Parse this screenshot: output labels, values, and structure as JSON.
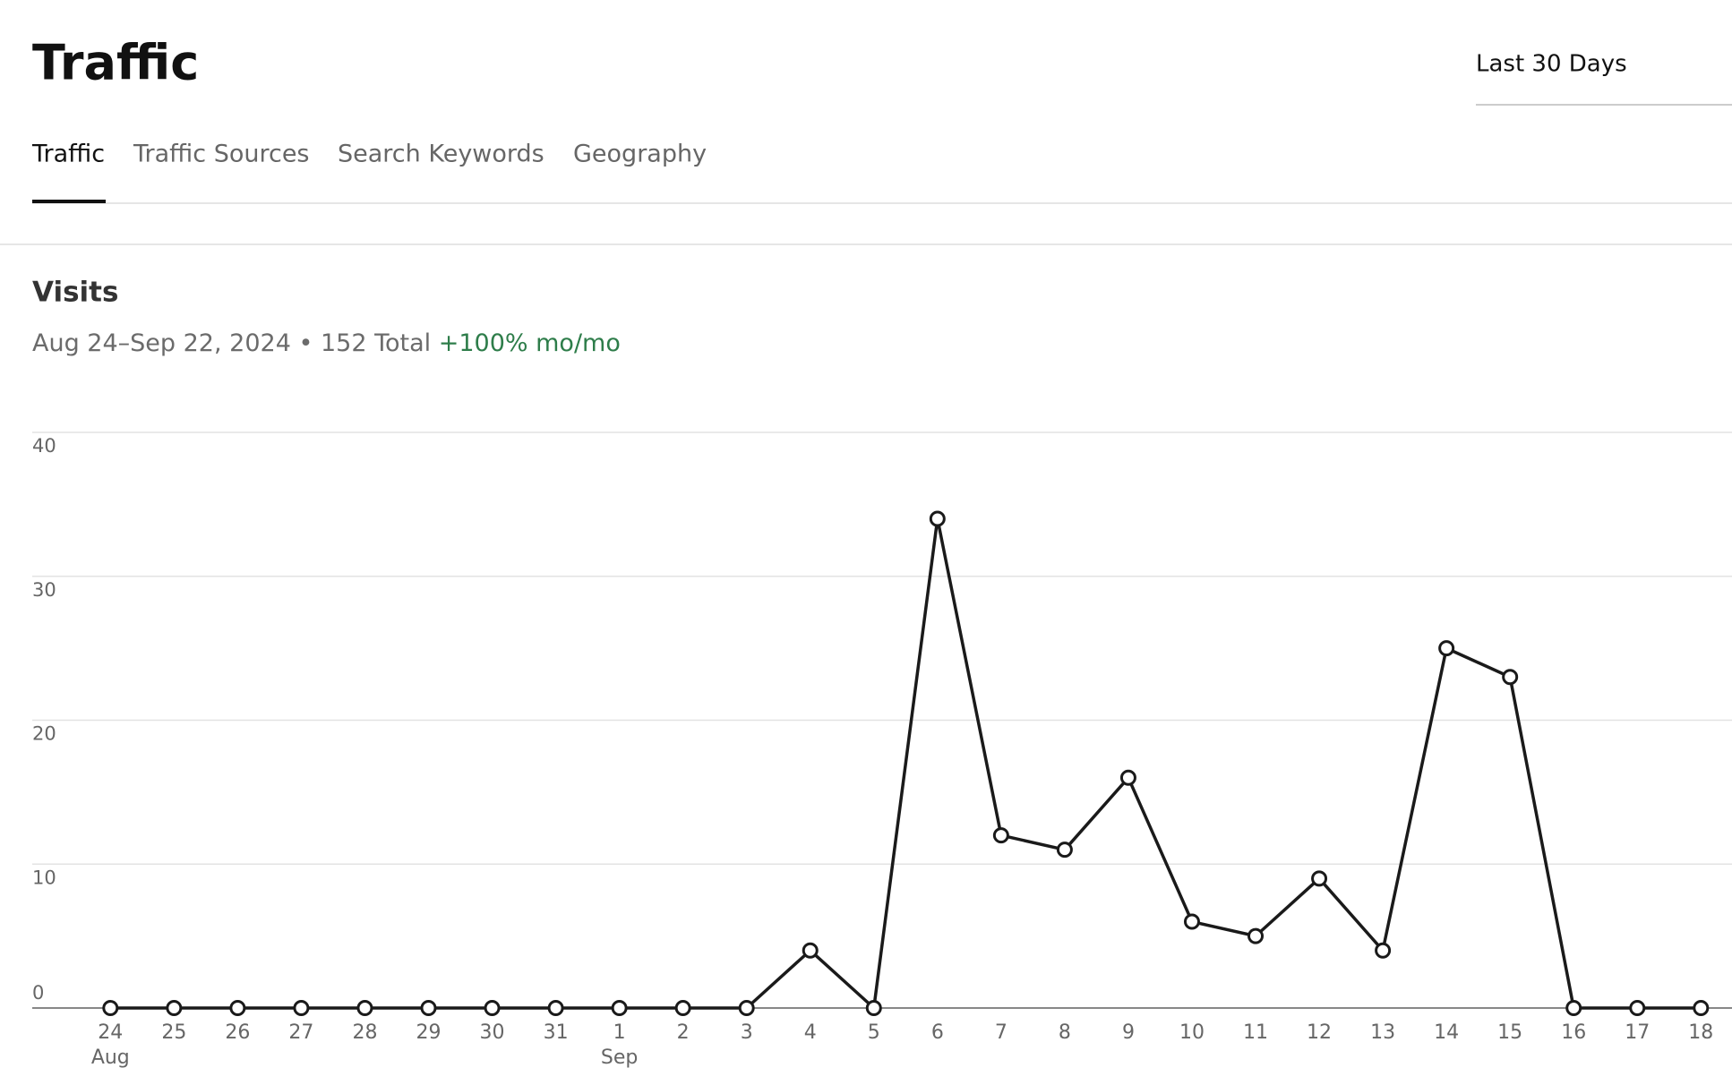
{
  "header": {
    "title": "Traffic",
    "range_selector": "Last 30 Days"
  },
  "tabs": [
    "Traffic",
    "Traffic Sources",
    "Search Keywords",
    "Geography"
  ],
  "chart_data": {
    "type": "line",
    "title": "Visits",
    "subtitle": "Aug 24–Sep 22, 2024 • 152 Total",
    "change": "+100% mo/mo",
    "categories": [
      "24",
      "25",
      "26",
      "27",
      "28",
      "29",
      "30",
      "31",
      "1",
      "2",
      "3",
      "4",
      "5",
      "6",
      "7",
      "8",
      "9",
      "10",
      "11",
      "12",
      "13",
      "14",
      "15",
      "16",
      "17",
      "18"
    ],
    "category_months": [
      "Aug",
      null,
      null,
      null,
      null,
      null,
      null,
      null,
      "Sep",
      null,
      null,
      null,
      null,
      null,
      null,
      null,
      null,
      null,
      null,
      null,
      null,
      null,
      null,
      null,
      null,
      null
    ],
    "series": [
      {
        "name": "Visits",
        "color": "#1a1a1a",
        "values": [
          0,
          0,
          0,
          0,
          0,
          0,
          0,
          0,
          0,
          0,
          0,
          4,
          0,
          34,
          12,
          11,
          16,
          6,
          5,
          9,
          4,
          25,
          23,
          0,
          0,
          0
        ]
      }
    ],
    "ylim": [
      0,
      40
    ],
    "yticks": [
      0,
      10,
      20,
      30,
      40
    ],
    "grid": true
  }
}
